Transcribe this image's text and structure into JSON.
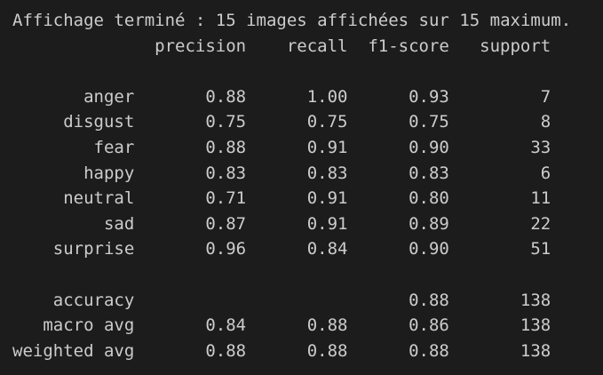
{
  "colors": {
    "background": "#1c1c1c",
    "text": "#cccccc"
  },
  "status_line": "Affichage terminé : 15 images affichées sur 15 maximum.",
  "report": {
    "columns": [
      "precision",
      "recall",
      "f1-score",
      "support"
    ],
    "rows": [
      {
        "label": "anger",
        "precision": "0.88",
        "recall": "1.00",
        "f1_score": "0.93",
        "support": "7"
      },
      {
        "label": "disgust",
        "precision": "0.75",
        "recall": "0.75",
        "f1_score": "0.75",
        "support": "8"
      },
      {
        "label": "fear",
        "precision": "0.88",
        "recall": "0.91",
        "f1_score": "0.90",
        "support": "33"
      },
      {
        "label": "happy",
        "precision": "0.83",
        "recall": "0.83",
        "f1_score": "0.83",
        "support": "6"
      },
      {
        "label": "neutral",
        "precision": "0.71",
        "recall": "0.91",
        "f1_score": "0.80",
        "support": "11"
      },
      {
        "label": "sad",
        "precision": "0.87",
        "recall": "0.91",
        "f1_score": "0.89",
        "support": "22"
      },
      {
        "label": "surprise",
        "precision": "0.96",
        "recall": "0.84",
        "f1_score": "0.90",
        "support": "51"
      }
    ],
    "summary_rows": [
      {
        "label": "accuracy",
        "precision": "",
        "recall": "",
        "f1_score": "0.88",
        "support": "138"
      },
      {
        "label": "macro avg",
        "precision": "0.84",
        "recall": "0.88",
        "f1_score": "0.86",
        "support": "138"
      },
      {
        "label": "weighted avg",
        "precision": "0.88",
        "recall": "0.88",
        "f1_score": "0.88",
        "support": "138"
      }
    ]
  }
}
